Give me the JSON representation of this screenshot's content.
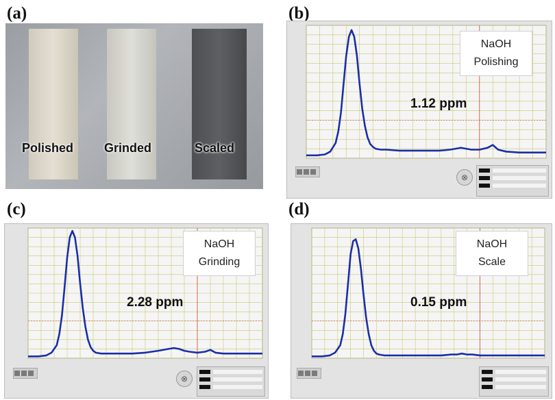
{
  "panel_labels": {
    "a": "(a)",
    "b": "(b)",
    "c": "(c)",
    "d": "(d)"
  },
  "photo": {
    "samples": [
      {
        "label": "Polished",
        "color": "#dcd7ca"
      },
      {
        "label": "Grinded",
        "color": "#d6d6cf"
      },
      {
        "label": "Scaled",
        "color": "#55575a"
      }
    ]
  },
  "style": {
    "curve_color": "#1a2ea8",
    "grid_color": "#c8c870",
    "plot_bg": "#f5f5f5",
    "cursor_color": "#d24a3a"
  },
  "chart_data": [
    {
      "panel": "b",
      "type": "line",
      "callout": [
        "NaOH",
        "Polishing"
      ],
      "annotation": "1.12 ppm",
      "xlim": [
        0,
        900
      ],
      "ylim": [
        0,
        140
      ],
      "grid": true,
      "series": [
        {
          "x": [
            0,
            40,
            70,
            90,
            110,
            120,
            130,
            140,
            150,
            160,
            170,
            180,
            190,
            200,
            210,
            220,
            230,
            240,
            250,
            260,
            280,
            300,
            350,
            400,
            450,
            500,
            540,
            560,
            580,
            600,
            620,
            650,
            680,
            700,
            720,
            750,
            800,
            850,
            900
          ],
          "y": [
            3,
            3,
            4,
            7,
            16,
            28,
            48,
            78,
            108,
            128,
            135,
            128,
            108,
            78,
            52,
            34,
            22,
            15,
            12,
            10,
            9,
            9,
            8,
            8,
            8,
            8,
            9,
            10,
            11,
            10,
            9,
            9,
            11,
            14,
            9,
            7,
            6,
            6,
            6
          ]
        }
      ]
    },
    {
      "panel": "c",
      "type": "line",
      "callout": [
        "NaOH",
        "Grinding"
      ],
      "annotation": "2.28 ppm",
      "xlim": [
        0,
        900
      ],
      "ylim": [
        0,
        140
      ],
      "grid": true,
      "series": [
        {
          "x": [
            0,
            40,
            70,
            90,
            110,
            120,
            130,
            140,
            150,
            160,
            170,
            180,
            190,
            200,
            210,
            220,
            230,
            240,
            250,
            260,
            280,
            300,
            350,
            400,
            450,
            500,
            540,
            560,
            580,
            600,
            620,
            650,
            680,
            700,
            720,
            750,
            800,
            850,
            900
          ],
          "y": [
            2,
            2,
            3,
            6,
            14,
            26,
            46,
            76,
            108,
            130,
            137,
            130,
            110,
            80,
            54,
            34,
            20,
            12,
            8,
            6,
            5,
            5,
            5,
            5,
            6,
            8,
            10,
            11,
            10,
            8,
            7,
            6,
            7,
            9,
            6,
            5,
            5,
            5,
            5
          ]
        }
      ]
    },
    {
      "panel": "d",
      "type": "line",
      "callout": [
        "NaOH",
        "Scale"
      ],
      "annotation": "0.15 ppm",
      "xlim": [
        0,
        900
      ],
      "ylim": [
        0,
        140
      ],
      "grid": true,
      "series": [
        {
          "x": [
            0,
            40,
            70,
            90,
            110,
            120,
            130,
            140,
            150,
            160,
            170,
            180,
            190,
            200,
            210,
            220,
            230,
            240,
            250,
            260,
            280,
            300,
            350,
            400,
            450,
            500,
            540,
            560,
            580,
            600,
            620,
            650,
            680,
            700,
            720,
            750,
            800,
            850,
            900
          ],
          "y": [
            2,
            2,
            3,
            6,
            14,
            26,
            48,
            80,
            112,
            126,
            128,
            118,
            96,
            68,
            44,
            26,
            14,
            8,
            5,
            4,
            3,
            3,
            3,
            3,
            3,
            3,
            4,
            4,
            5,
            4,
            4,
            3,
            3,
            3,
            3,
            3,
            3,
            3,
            3
          ]
        }
      ]
    }
  ]
}
